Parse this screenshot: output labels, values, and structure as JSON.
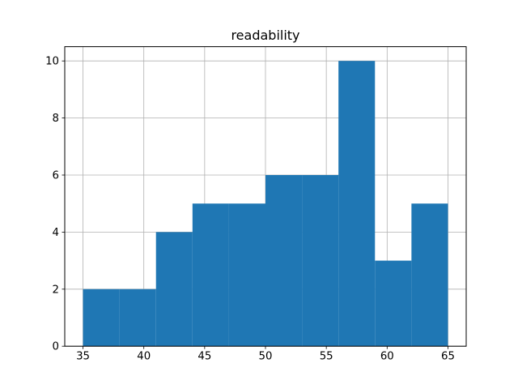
{
  "figure": {
    "background": "#ffffff"
  },
  "chart_data": {
    "type": "bar",
    "subtype": "histogram",
    "title": "readability",
    "xlabel": "",
    "ylabel": "",
    "bin_edges": [
      35,
      38,
      41,
      44,
      47,
      50,
      53,
      56,
      59,
      62,
      65
    ],
    "counts": [
      2,
      2,
      4,
      5,
      5,
      6,
      6,
      10,
      3,
      5
    ],
    "xticks": [
      35,
      40,
      45,
      50,
      55,
      60,
      65
    ],
    "yticks": [
      0,
      2,
      4,
      6,
      8,
      10
    ],
    "xlim": [
      33.5,
      66.5
    ],
    "ylim": [
      0,
      10.5
    ],
    "grid": true,
    "legend": false,
    "bar_color": "#1f77b4",
    "grid_color": "#b0b0b0",
    "axis_color": "#000000",
    "tick_label_color": "#000000"
  }
}
